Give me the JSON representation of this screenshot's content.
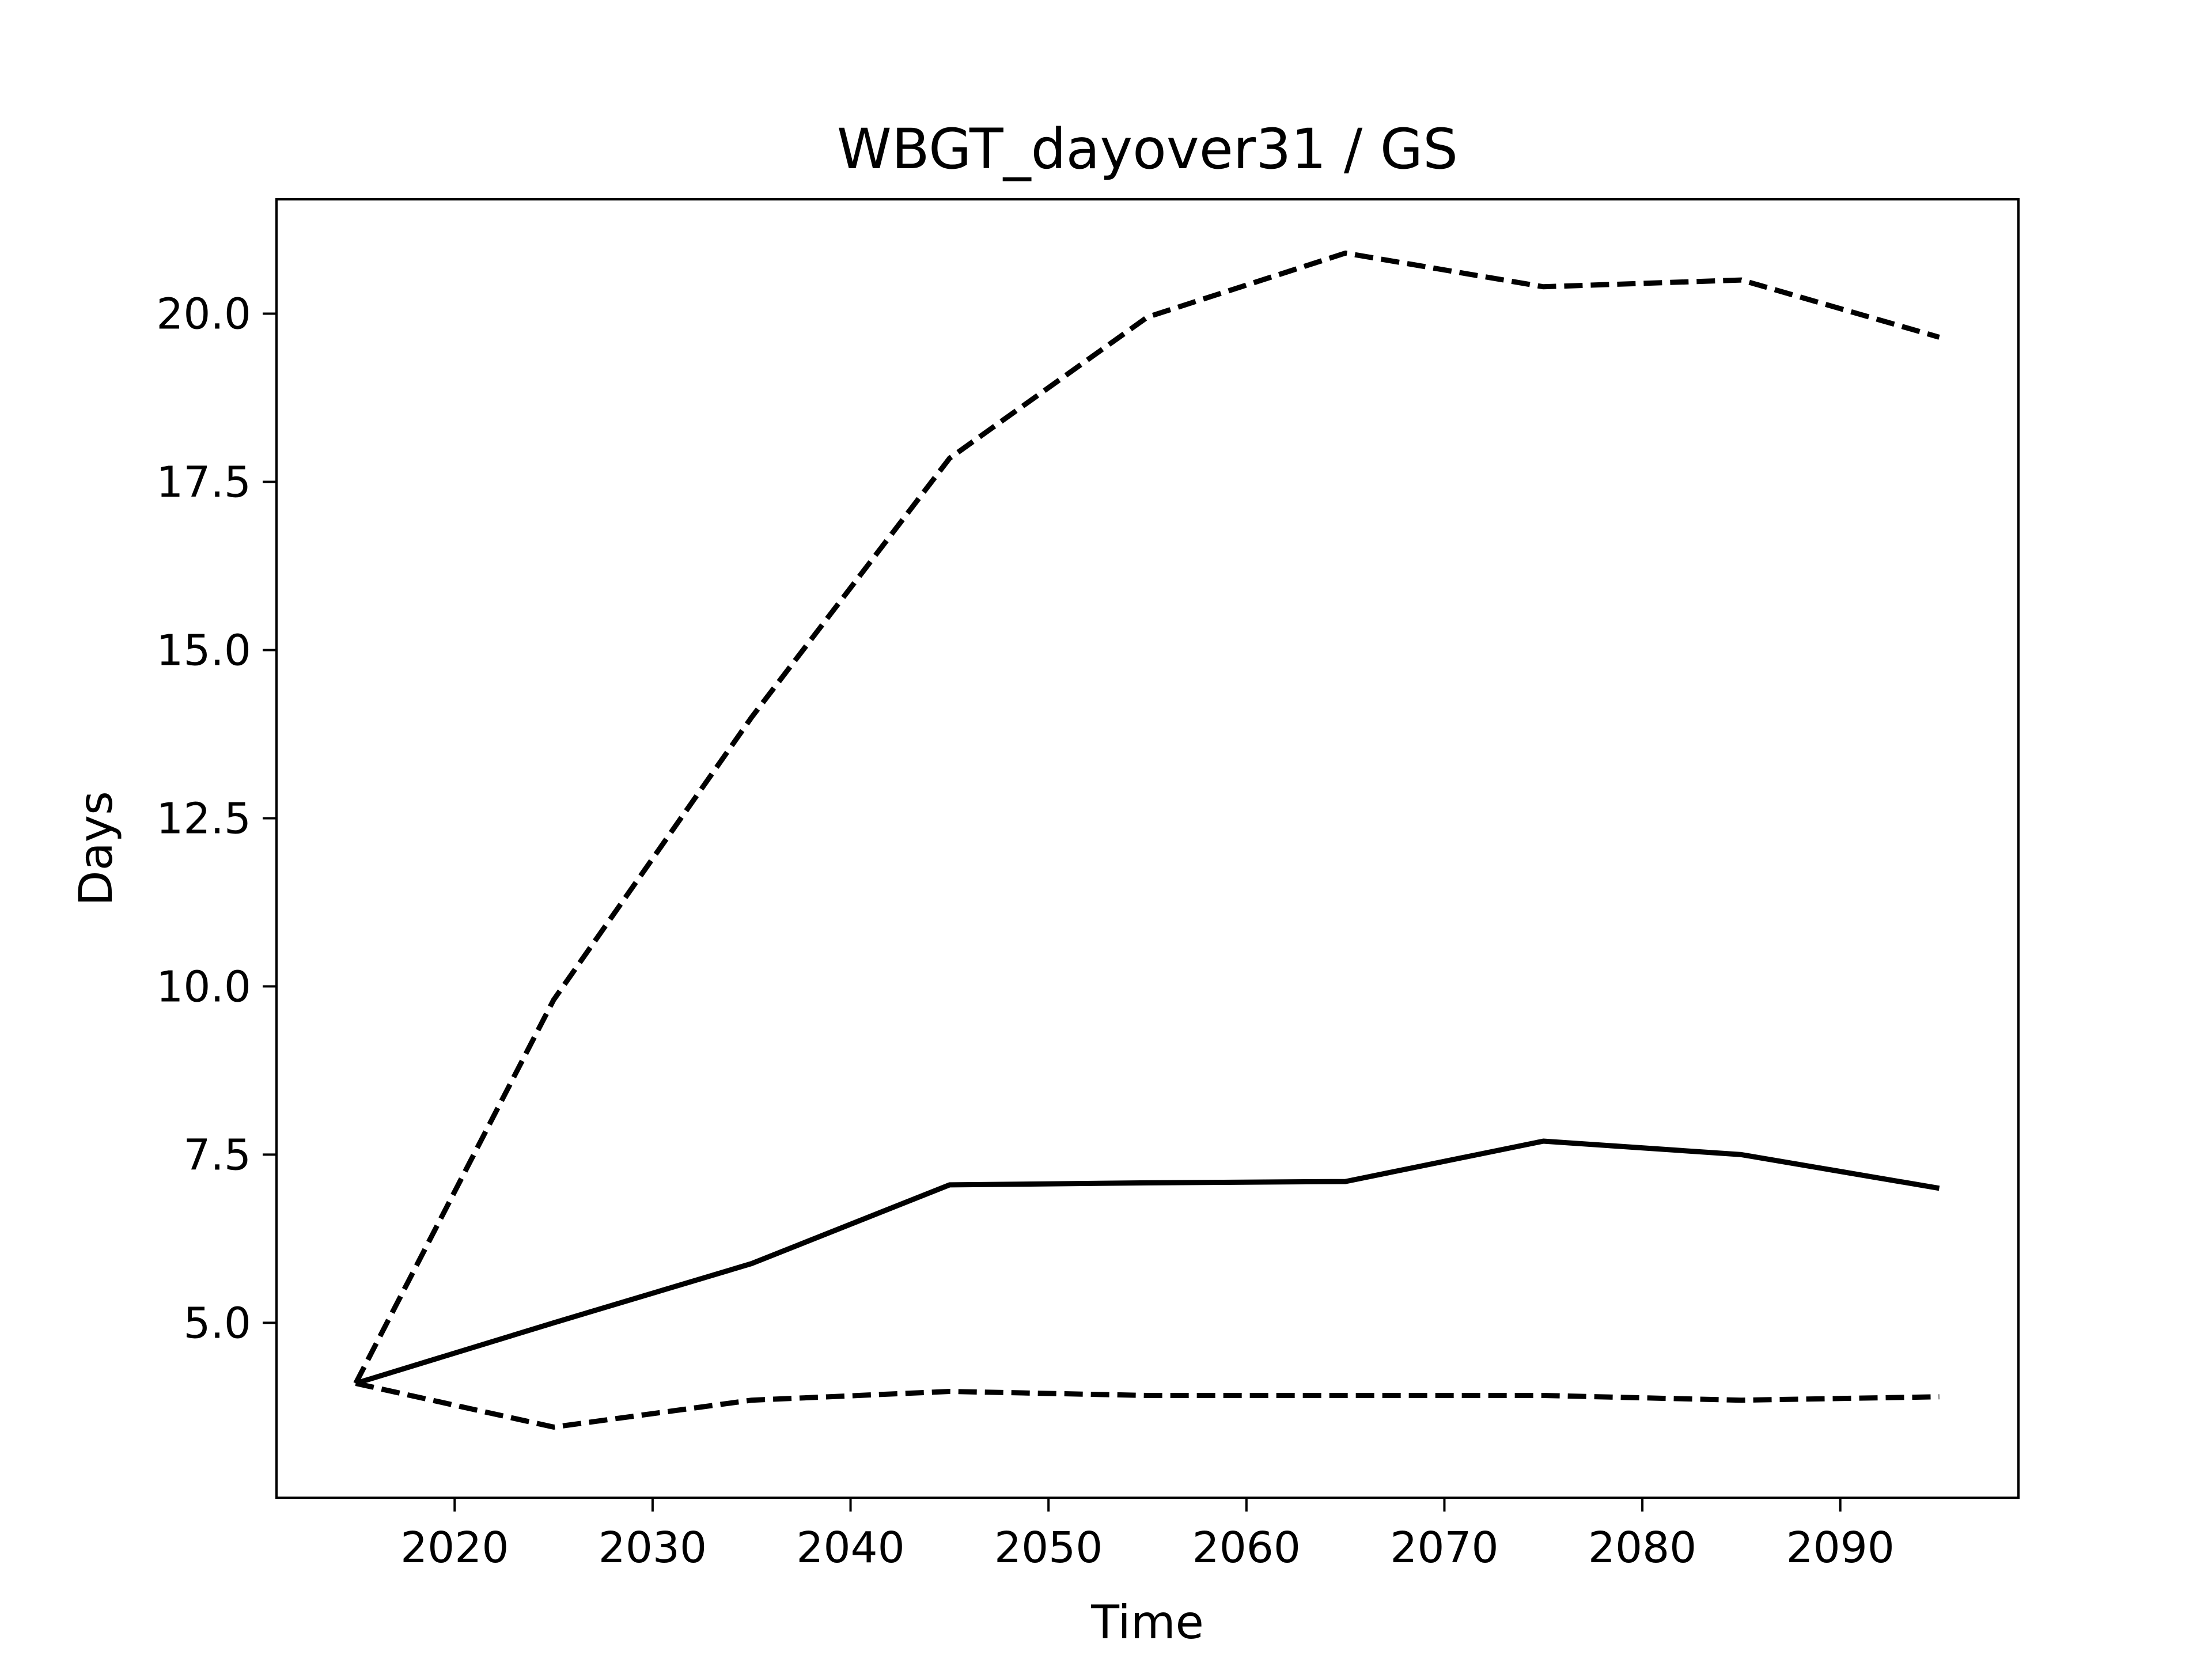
{
  "chart_data": {
    "type": "line",
    "title": "WBGT_dayover31 / GS",
    "xlabel": "Time",
    "ylabel": "Days",
    "xlim": [
      2011,
      2099
    ],
    "ylim": [
      2.4,
      21.7
    ],
    "xticks": [
      2020,
      2030,
      2040,
      2050,
      2060,
      2070,
      2080,
      2090
    ],
    "xtick_labels": [
      "2020",
      "2030",
      "2040",
      "2050",
      "2060",
      "2070",
      "2080",
      "2090"
    ],
    "yticks": [
      5.0,
      7.5,
      10.0,
      12.5,
      15.0,
      17.5,
      20.0
    ],
    "ytick_labels": [
      "5.0",
      "7.5",
      "10.0",
      "12.5",
      "15.0",
      "17.5",
      "20.0"
    ],
    "grid": false,
    "legend": false,
    "x": [
      2015,
      2025,
      2035,
      2045,
      2055,
      2065,
      2075,
      2085,
      2095
    ],
    "series": [
      {
        "style": "dashed",
        "color": "#000000",
        "values": [
          4.1,
          9.8,
          14.0,
          17.85,
          19.95,
          20.9,
          20.4,
          20.5,
          19.65
        ]
      },
      {
        "style": "solid",
        "color": "#000000",
        "values": [
          4.1,
          5.0,
          5.88,
          7.05,
          7.08,
          7.1,
          7.7,
          7.5,
          7.0
        ]
      },
      {
        "style": "dashed",
        "color": "#000000",
        "values": [
          4.1,
          3.45,
          3.85,
          3.98,
          3.92,
          3.92,
          3.92,
          3.85,
          3.9
        ]
      }
    ]
  }
}
